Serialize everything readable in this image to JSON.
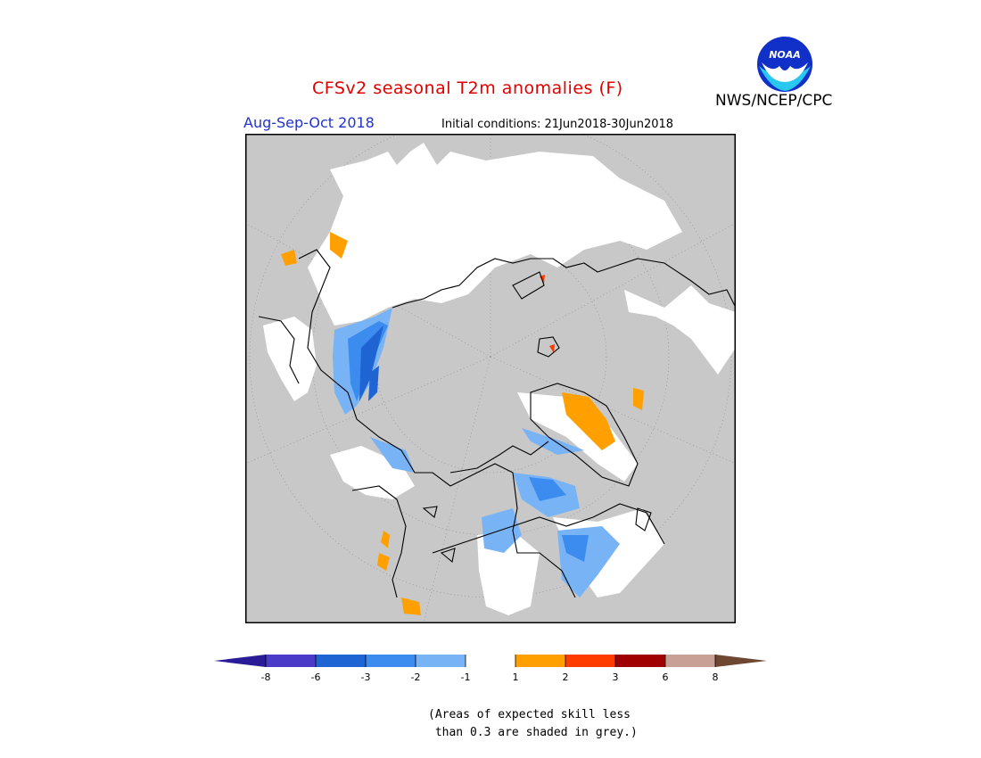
{
  "header": {
    "title": "CFSv2 seasonal T2m anomalies (F)",
    "season": "Aug-Sep-Oct 2018",
    "initial_conditions": "Initial conditions: 21Jun2018-30Jun2018",
    "agency": "NWS/NCEP/CPC",
    "logo_text": "NOAA"
  },
  "map": {
    "projection": "north polar stereographic",
    "background_color": "#c8c8c8",
    "coastline_color": "#000000"
  },
  "legend": {
    "ticks": [
      "-8",
      "-6",
      "-3",
      "-2",
      "-1",
      "1",
      "2",
      "3",
      "6",
      "8"
    ],
    "colors": [
      "#2a1c96",
      "#4a3cc8",
      "#1e64d2",
      "#3c8cf0",
      "#78b4f5",
      "#ffffff",
      "#ffa000",
      "#ff3c00",
      "#a00000",
      "#c8a096",
      "#6e4632"
    ]
  },
  "note": {
    "line1": "(Areas of expected skill less",
    "line2": " than 0.3 are shaded in grey.)"
  }
}
